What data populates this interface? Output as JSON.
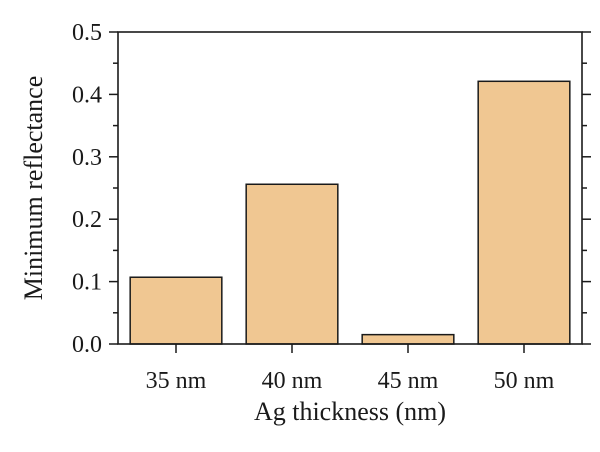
{
  "chart_data": {
    "type": "bar",
    "categories": [
      "35 nm",
      "40 nm",
      "45 nm",
      "50 nm"
    ],
    "values": [
      0.107,
      0.256,
      0.015,
      0.421
    ],
    "xlabel": "Ag thickness (nm)",
    "ylabel": "Minimum reflectance",
    "ylim": [
      0,
      0.5
    ],
    "yticks": [
      0.0,
      0.1,
      0.2,
      0.3,
      0.4,
      0.5
    ],
    "ytick_labels": [
      "0.0",
      "0.1",
      "0.2",
      "0.3",
      "0.4",
      "0.5"
    ],
    "bar_color": "#f0c792",
    "grid": false,
    "legend": "none"
  }
}
